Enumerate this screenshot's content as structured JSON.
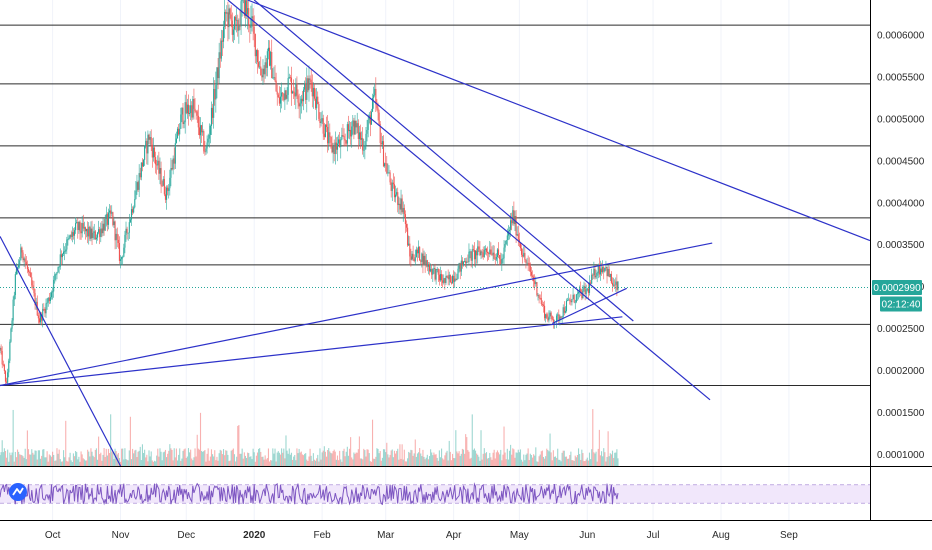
{
  "chart_data": {
    "type": "candlestick",
    "y_axis": {
      "scale": "linear",
      "range": [
        8.6e-05,
        0.000642
      ],
      "tick_labels": [
        "0.0006000",
        "0.0005500",
        "0.0005000",
        "0.0004500",
        "0.0004000",
        "0.0003500",
        "0.0003000",
        "0.0002500",
        "0.0002000",
        "0.0001500",
        "0.0001000"
      ],
      "tick_values": [
        0.0006,
        0.00055,
        0.0005,
        0.00045,
        0.0004,
        0.00035,
        0.0003,
        0.00025,
        0.0002,
        0.00015,
        0.0001
      ],
      "side": "right"
    },
    "x_axis": {
      "range": [
        "2019-09-07",
        "2020-10-08"
      ],
      "tick_labels": [
        "Oct",
        "Nov",
        "Dec",
        "2020",
        "Feb",
        "Mar",
        "Apr",
        "May",
        "Jun",
        "Jul",
        "Aug",
        "Sep"
      ],
      "tick_dates": [
        "2019-10-01",
        "2019-11-01",
        "2019-12-01",
        "2020-01-01",
        "2020-02-01",
        "2020-03-01",
        "2020-04-01",
        "2020-05-01",
        "2020-06-01",
        "2020-07-01",
        "2020-08-01",
        "2020-09-01"
      ]
    },
    "last_price": "0.0002990",
    "last_price_value": 0.000299,
    "countdown": "02:12:40",
    "price_path": [
      [
        "2019-09-07",
        0.000225
      ],
      [
        "2019-09-10",
        0.000182
      ],
      [
        "2019-09-14",
        0.00031
      ],
      [
        "2019-09-17",
        0.000345
      ],
      [
        "2019-09-21",
        0.000305
      ],
      [
        "2019-09-25",
        0.00026
      ],
      [
        "2019-09-30",
        0.00029
      ],
      [
        "2019-10-05",
        0.00034
      ],
      [
        "2019-10-12",
        0.00037
      ],
      [
        "2019-10-20",
        0.00036
      ],
      [
        "2019-10-28",
        0.000385
      ],
      [
        "2019-11-01",
        0.00033
      ],
      [
        "2019-11-08",
        0.000415
      ],
      [
        "2019-11-14",
        0.00048
      ],
      [
        "2019-11-18",
        0.00044
      ],
      [
        "2019-11-22",
        0.00041
      ],
      [
        "2019-11-29",
        0.000505
      ],
      [
        "2019-12-04",
        0.000515
      ],
      [
        "2019-12-10",
        0.00046
      ],
      [
        "2019-12-15",
        0.00055
      ],
      [
        "2019-12-19",
        0.000625
      ],
      [
        "2019-12-24",
        0.000605
      ],
      [
        "2019-12-27",
        0.00064
      ],
      [
        "2019-12-31",
        0.00061
      ],
      [
        "2020-01-04",
        0.000555
      ],
      [
        "2020-01-08",
        0.000575
      ],
      [
        "2020-01-12",
        0.00052
      ],
      [
        "2020-01-17",
        0.000545
      ],
      [
        "2020-01-22",
        0.000525
      ],
      [
        "2020-01-27",
        0.000545
      ],
      [
        "2020-01-31",
        0.000505
      ],
      [
        "2020-02-05",
        0.000465
      ],
      [
        "2020-02-10",
        0.00047
      ],
      [
        "2020-02-15",
        0.000495
      ],
      [
        "2020-02-20",
        0.00047
      ],
      [
        "2020-02-25",
        0.000525
      ],
      [
        "2020-02-29",
        0.000455
      ],
      [
        "2020-03-04",
        0.000415
      ],
      [
        "2020-03-09",
        0.000395
      ],
      [
        "2020-03-12",
        0.000335
      ],
      [
        "2020-03-16",
        0.00034
      ],
      [
        "2020-03-22",
        0.00032
      ],
      [
        "2020-03-28",
        0.000305
      ],
      [
        "2020-04-02",
        0.000315
      ],
      [
        "2020-04-07",
        0.000335
      ],
      [
        "2020-04-12",
        0.00034
      ],
      [
        "2020-04-18",
        0.000345
      ],
      [
        "2020-04-23",
        0.00033
      ],
      [
        "2020-04-28",
        0.000385
      ],
      [
        "2020-05-03",
        0.000335
      ],
      [
        "2020-05-08",
        0.000305
      ],
      [
        "2020-05-13",
        0.000265
      ],
      [
        "2020-05-18",
        0.00026
      ],
      [
        "2020-05-23",
        0.00028
      ],
      [
        "2020-05-28",
        0.00029
      ],
      [
        "2020-06-01",
        0.000295
      ],
      [
        "2020-06-05",
        0.00032
      ],
      [
        "2020-06-09",
        0.000325
      ],
      [
        "2020-06-13",
        0.0003
      ],
      [
        "2020-06-15",
        0.000299
      ]
    ],
    "horizontal_levels": [
      0.000612,
      0.000542,
      0.000468,
      0.000382,
      0.000326,
      0.000255,
      0.000182
    ],
    "trendlines": [
      {
        "from": [
          "2019-12-29",
          0.000642
        ],
        "to": [
          "2020-10-08",
          0.000355
        ]
      },
      {
        "from": [
          "2020-01-01",
          0.000642
        ],
        "to": [
          "2020-06-22",
          0.000259
        ]
      },
      {
        "from": [
          "2019-12-20",
          0.000642
        ],
        "to": [
          "2020-07-27",
          0.000165
        ]
      },
      {
        "from": [
          "2019-09-07",
          0.000182
        ],
        "to": [
          "2020-07-28",
          0.000352
        ]
      },
      {
        "from": [
          "2019-09-07",
          0.000182
        ],
        "to": [
          "2020-06-17",
          0.000264
        ]
      },
      {
        "from": [
          "2020-05-16",
          0.000256
        ],
        "to": [
          "2020-06-19",
          0.000298
        ]
      },
      {
        "from": [
          "2019-09-07",
          0.00036
        ],
        "to": [
          "2019-11-01",
          8.6e-05
        ]
      }
    ],
    "volume": {
      "baseline": "bottom of price pane",
      "peak_relative": 1.0
    },
    "oscillator": {
      "range": [
        0,
        100
      ],
      "bands": [
        30,
        70
      ],
      "color": "#7e57c2"
    }
  },
  "colors": {
    "up": "#26a69a",
    "down": "#ef5350",
    "lines": "#2d32c9",
    "levels": "#2b2b2b",
    "price_badge": "#26a69a",
    "osc_band": "#f1e7fb",
    "osc_line": "#7e57c2"
  },
  "icons": {
    "indicator_logo": "indicator-logo-icon"
  }
}
